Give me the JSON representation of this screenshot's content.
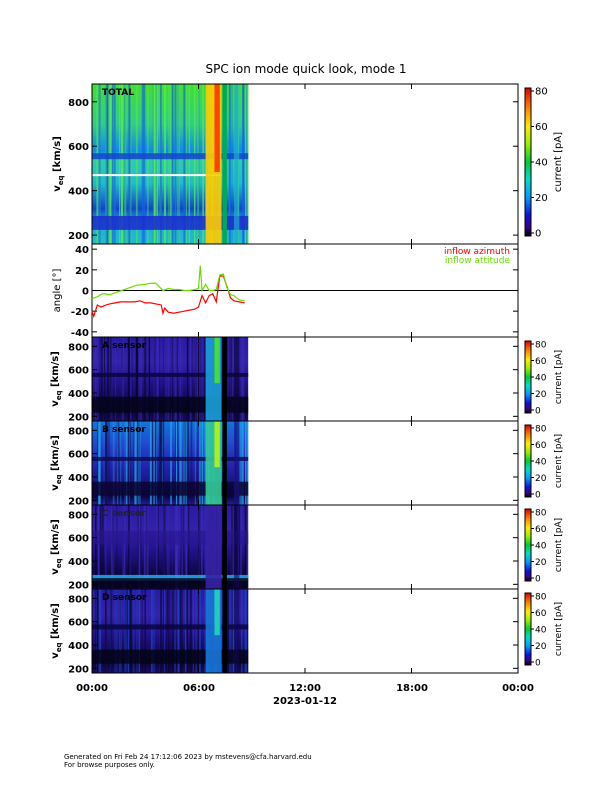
{
  "title": "SPC ion mode quick look, mode 1",
  "xaxis": {
    "ticks": [
      "00:00",
      "06:00",
      "12:00",
      "18:00",
      "00:00"
    ],
    "date_label": "2023-01-12"
  },
  "footer": {
    "line1": "Generated on Fri Feb 24 17:12:06 2023 by mstevens@cfa.harvard.edu",
    "line2": "For browse purposes only."
  },
  "chart_data": [
    {
      "type": "heatmap",
      "panel": "total",
      "label": "TOTAL",
      "ylabel": "v_eq [km/s]",
      "yticks": [
        200,
        400,
        600,
        800
      ],
      "ylim": [
        160,
        880
      ],
      "xlim_hours": [
        0,
        24
      ],
      "data_extent_hours": [
        0,
        8.8
      ],
      "colorbar": {
        "label": "current [pA]",
        "ticks": [
          0,
          20,
          40,
          60,
          80
        ],
        "range": [
          0,
          80
        ]
      }
    },
    {
      "type": "line",
      "panel": "angle",
      "ylabel": "angle [°]",
      "yticks": [
        -40,
        -20,
        0,
        20,
        40
      ],
      "ylim": [
        -45,
        45
      ],
      "xlim_hours": [
        0,
        24
      ],
      "series": [
        {
          "name": "inflow azimuth",
          "color": "#ff0000",
          "x": [
            0.0,
            0.1,
            0.3,
            0.5,
            0.8,
            1.0,
            1.3,
            1.6,
            2.0,
            2.4,
            2.7,
            3.0,
            3.3,
            3.6,
            3.9,
            4.0,
            4.1,
            4.3,
            4.6,
            4.9,
            5.2,
            5.5,
            5.8,
            6.0,
            6.2,
            6.4,
            6.6,
            6.8,
            7.0,
            7.2,
            7.4,
            7.6,
            7.8,
            8.0,
            8.3,
            8.6
          ],
          "y": [
            -20,
            -25,
            -14,
            -16,
            -14,
            -13,
            -12,
            -11,
            -11,
            -11,
            -10,
            -12,
            -12,
            -13,
            -14,
            -22,
            -17,
            -21,
            -22,
            -21,
            -20,
            -19,
            -18,
            -16,
            -5,
            -12,
            -5,
            -3,
            -11,
            14,
            14,
            4,
            -7,
            -10,
            -11,
            -12
          ]
        },
        {
          "name": "inflow attitude",
          "color": "#66dd00",
          "x": [
            0.0,
            0.3,
            0.6,
            1.0,
            1.5,
            2.0,
            2.5,
            3.0,
            3.3,
            3.6,
            4.0,
            4.3,
            4.6,
            4.9,
            5.2,
            5.5,
            5.8,
            6.0,
            6.1,
            6.2,
            6.4,
            6.6,
            6.8,
            7.0,
            7.2,
            7.4,
            7.6,
            7.8,
            8.0,
            8.3,
            8.6
          ],
          "y": [
            -8,
            -6,
            -3,
            -4,
            -1,
            2,
            5,
            6,
            7,
            7,
            0,
            2,
            1,
            1,
            0,
            0,
            1,
            2,
            24,
            0,
            6,
            0,
            0,
            1,
            15,
            16,
            3,
            -4,
            -5,
            -9,
            -10
          ]
        }
      ],
      "zero_line": true
    },
    {
      "type": "heatmap",
      "panel": "A",
      "label": "A sensor",
      "ylabel": "v_eq [km/s]",
      "yticks": [
        200,
        400,
        600,
        800
      ],
      "ylim": [
        160,
        880
      ],
      "colorbar": {
        "label": "current [pA]",
        "ticks": [
          0,
          20,
          40,
          60,
          80
        ],
        "range": [
          0,
          80
        ]
      }
    },
    {
      "type": "heatmap",
      "panel": "B",
      "label": "B sensor",
      "ylabel": "v_eq [km/s]",
      "yticks": [
        200,
        400,
        600,
        800
      ],
      "ylim": [
        160,
        880
      ],
      "colorbar": {
        "label": "current [pA]",
        "ticks": [
          0,
          20,
          40,
          60,
          80
        ],
        "range": [
          0,
          80
        ]
      }
    },
    {
      "type": "heatmap",
      "panel": "C",
      "label": "C sensor",
      "ylabel": "v_eq [km/s]",
      "yticks": [
        200,
        400,
        600,
        800
      ],
      "ylim": [
        160,
        880
      ],
      "colorbar": {
        "label": "current [pA]",
        "ticks": [
          0,
          20,
          40,
          60,
          80
        ],
        "range": [
          0,
          80
        ]
      }
    },
    {
      "type": "heatmap",
      "panel": "D",
      "label": "D sensor",
      "ylabel": "v_eq [km/s]",
      "yticks": [
        200,
        400,
        600,
        800
      ],
      "ylim": [
        160,
        880
      ],
      "colorbar": {
        "label": "current [pA]",
        "ticks": [
          0,
          20,
          40,
          60,
          80
        ],
        "range": [
          0,
          80
        ]
      }
    }
  ]
}
